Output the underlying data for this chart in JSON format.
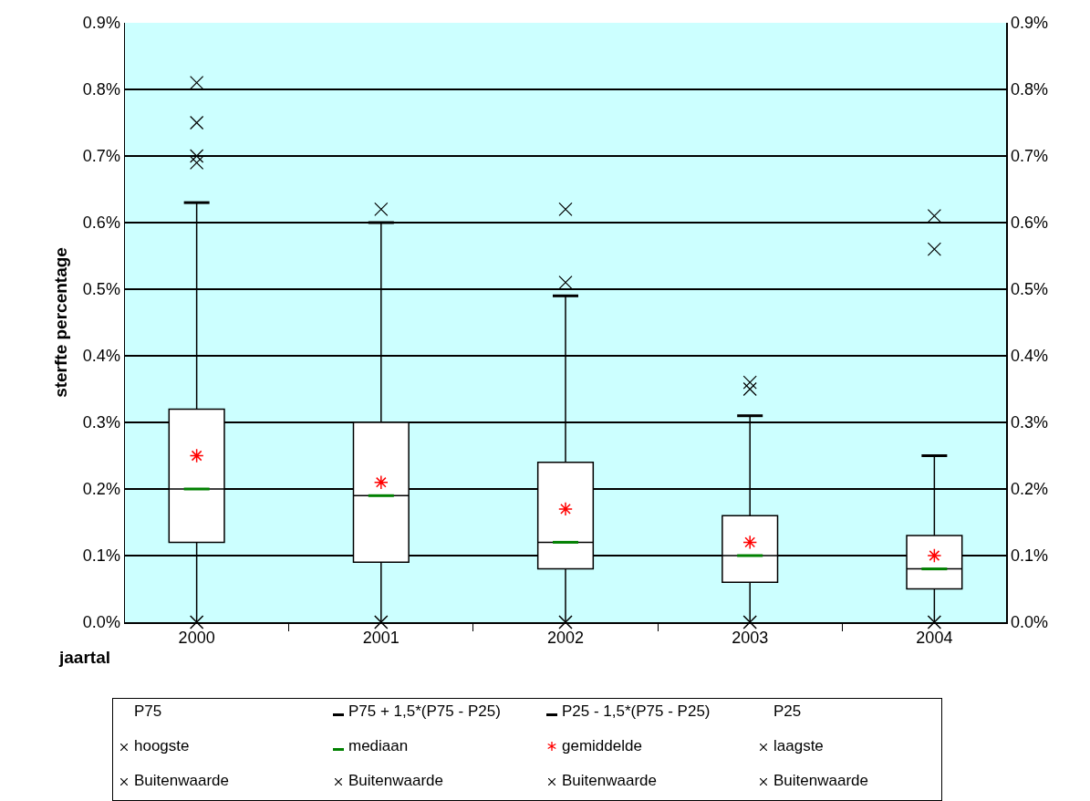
{
  "chart_data": {
    "type": "box",
    "xlabel": "jaartal",
    "ylabel": "sterfte percentage",
    "categories": [
      "2000",
      "2001",
      "2002",
      "2003",
      "2004"
    ],
    "boxes": [
      {
        "low": 0,
        "q1": 0.12,
        "median": 0.2,
        "q3": 0.32,
        "high": 0.63,
        "mean": 0.25,
        "outliers": [
          0.81,
          0.75,
          0.7,
          0.69
        ]
      },
      {
        "low": 0,
        "q1": 0.09,
        "median": 0.19,
        "q3": 0.3,
        "high": 0.6,
        "mean": 0.21,
        "outliers": [
          0.62
        ]
      },
      {
        "low": 0,
        "q1": 0.08,
        "median": 0.12,
        "q3": 0.24,
        "high": 0.49,
        "mean": 0.17,
        "outliers": [
          0.62,
          0.51
        ]
      },
      {
        "low": 0,
        "q1": 0.06,
        "median": 0.1,
        "q3": 0.16,
        "high": 0.31,
        "mean": 0.12,
        "outliers": [
          0.36,
          0.35
        ]
      },
      {
        "low": 0,
        "q1": 0.05,
        "median": 0.08,
        "q3": 0.13,
        "high": 0.25,
        "mean": 0.1,
        "outliers": [
          0.61,
          0.56
        ]
      }
    ],
    "series": [
      {
        "type": "scatter",
        "values": [
          0,
          0,
          0,
          0,
          0
        ],
        "color": "#000000",
        "marker": "cross"
      }
    ],
    "ylim": [
      0,
      0.9
    ],
    "yticks": [
      {
        "value": 0,
        "label": "0.0%"
      },
      {
        "value": 0.1,
        "label": "0.1%"
      },
      {
        "value": 0.2,
        "label": "0.2%"
      },
      {
        "value": 0.3,
        "label": "0.3%"
      },
      {
        "value": 0.4,
        "label": "0.4%"
      },
      {
        "value": 0.5,
        "label": "0.5%"
      },
      {
        "value": 0.6,
        "label": "0.6%"
      },
      {
        "value": 0.7,
        "label": "0.7%"
      },
      {
        "value": 0.8,
        "label": "0.8%"
      },
      {
        "value": 0.9,
        "label": "0.9%"
      }
    ],
    "y2lim": [
      0,
      0.9
    ],
    "y2ticks": [
      {
        "value": 0,
        "label": "0.0%"
      },
      {
        "value": 0.1,
        "label": "0.1%"
      },
      {
        "value": 0.2,
        "label": "0.2%"
      },
      {
        "value": 0.3,
        "label": "0.3%"
      },
      {
        "value": 0.4,
        "label": "0.4%"
      },
      {
        "value": 0.5,
        "label": "0.5%"
      },
      {
        "value": 0.6,
        "label": "0.6%"
      },
      {
        "value": 0.7,
        "label": "0.7%"
      },
      {
        "value": 0.8,
        "label": "0.8%"
      },
      {
        "value": 0.9,
        "label": "0.9%"
      }
    ],
    "grid": "y",
    "annotations": [
      "P75",
      "P75 + 1,5*(P75 - P25)",
      "P25  - 1,5*(P75 - P25)",
      "P25",
      "hoogste",
      "mediaan",
      "gemiddelde",
      "laagste",
      "Buitenwaarde",
      "Buitenwaarde",
      "Buitenwaarde",
      "Buitenwaarde"
    ]
  }
}
